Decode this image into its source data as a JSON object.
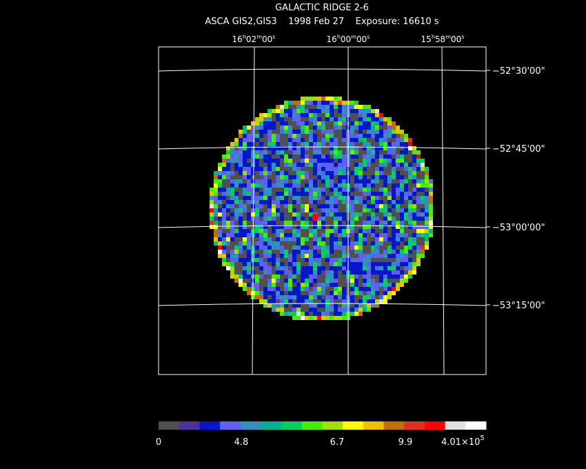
{
  "title": "GALACTIC RIDGE 2-6",
  "subtitle": "ASCA GIS2,GIS3    1998 Feb 27    Exposure: 16610 s",
  "ra_labels": [
    {
      "parts": [
        "16",
        "h",
        "02",
        "m",
        "00",
        "s"
      ]
    },
    {
      "parts": [
        "16",
        "h",
        "00",
        "m",
        "00",
        "s"
      ]
    },
    {
      "parts": [
        "15",
        "h",
        "58",
        "m",
        "00",
        "s"
      ]
    }
  ],
  "dec_labels": [
    "−52°30'00\"",
    "−52°45'00\"",
    "−53°00'00\"",
    "−53°15'00\""
  ],
  "colorbar": {
    "colors": [
      "#505050",
      "#5030a0",
      "#0018c8",
      "#6060f0",
      "#3090c0",
      "#00b090",
      "#00d060",
      "#40f000",
      "#a0e000",
      "#ffff00",
      "#f0c000",
      "#c07000",
      "#e03020",
      "#ff0000",
      "#e0e0e0",
      "#ffffff"
    ],
    "labels": [
      "0",
      "4.8",
      "6.7",
      "9.9",
      {
        "mantissa": "4.01×10",
        "exponent": "5"
      }
    ]
  }
}
